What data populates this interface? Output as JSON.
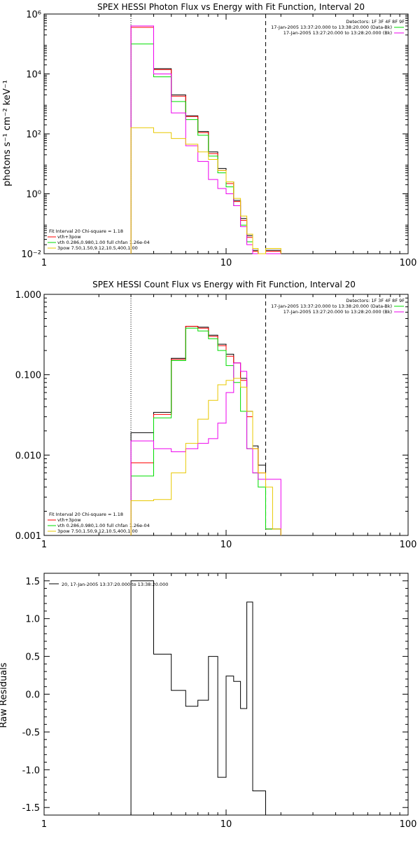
{
  "colors": {
    "black": "#000000",
    "red": "#ff0000",
    "green": "#00dd00",
    "magenta": "#ee00ee",
    "yellow": "#e8c800"
  },
  "chart_data": [
    {
      "type": "line",
      "title": "SPEX HESSI Photon Flux vs Energy with Fit Function, Interval 20",
      "xlabel": "",
      "ylabel": "photons s⁻¹ cm⁻² keV⁻¹",
      "xscale": "log",
      "yscale": "log",
      "xlim": [
        1,
        100
      ],
      "ylim": [
        0.01,
        1000000
      ],
      "x_ticks": [
        "1",
        "10",
        "100"
      ],
      "y_ticks": [
        "10⁻²",
        "10⁰",
        "10²",
        "10⁴",
        "10⁶"
      ],
      "annotation_left": [
        "Fit Interval 20   Chi-square = 1.18",
        "vth+3pow",
        "vth 0.286,0.980,1.00  full chfan 1.26e-04",
        "3pow 7.50,1.50,9.12,10.5,400,1.00"
      ],
      "annotation_right": [
        "Detectors: 1F 3F 4F 8F 9F",
        "17-Jan-2005 13:37:20.000 to 13:38:20.000 (Data-Bk)",
        "17-Jan-2005 13:27:20.000 to 13:28:20.000 (Bk)"
      ],
      "vlines": [
        {
          "x": 3,
          "style": "dotted"
        },
        {
          "x": 16.5,
          "style": "dashed"
        }
      ],
      "edges": [
        3,
        4,
        5,
        6,
        7,
        8,
        9,
        10,
        11,
        12,
        13,
        14,
        15,
        16.5,
        18,
        20
      ],
      "series": [
        {
          "name": "Data-Bk",
          "color": "black",
          "values": [
            400000,
            15000,
            2000,
            400,
            120,
            25,
            7,
            2.5,
            0.6,
            0.15,
            0.04,
            0.013,
            0.005,
            0.013,
            0.013
          ]
        },
        {
          "name": "vth+3pow",
          "color": "red",
          "values": [
            360000,
            14000,
            1800,
            380,
            110,
            22,
            6,
            2.2,
            0.55,
            0.13,
            0.035,
            0.012,
            0.004,
            0.012,
            0.012
          ]
        },
        {
          "name": "vth",
          "color": "green",
          "values": [
            100000,
            8000,
            1200,
            300,
            90,
            18,
            5,
            1.7,
            0.4,
            0.09,
            0.025,
            0.01,
            0.004,
            0.004,
            0.004
          ]
        },
        {
          "name": "Bk",
          "color": "magenta",
          "values": [
            400000,
            10000,
            500,
            40,
            12,
            3,
            1.5,
            1,
            0.4,
            0.08,
            0.02,
            0.005,
            0.005,
            0.005,
            0.005
          ]
        },
        {
          "name": "3pow",
          "color": "yellow",
          "values": [
            160,
            110,
            70,
            45,
            25,
            14,
            6,
            2.5,
            0.7,
            0.18,
            0.045,
            0.015,
            0.006,
            0.015,
            0.015
          ]
        }
      ]
    },
    {
      "type": "line",
      "title": "SPEX HESSI Count Flux vs Energy with Fit Function, Interval 20",
      "xlabel": "",
      "ylabel": "",
      "xscale": "log",
      "yscale": "log",
      "xlim": [
        1,
        100
      ],
      "ylim": [
        0.001,
        1
      ],
      "x_ticks": [
        "1",
        "10",
        "100"
      ],
      "y_ticks": [
        "0.001",
        "0.010",
        "0.100",
        "1.000"
      ],
      "annotation_left": [
        "Fit Interval 20   Chi-square = 1.18",
        "vth+3pow",
        "vth 0.286,0.980,1.00  full chfan 1.26e-04",
        "3pow 7.50,1.50,9.12,10.5,400,1.00"
      ],
      "annotation_right": [
        "Detectors: 1F 3F 4F 8F 9F",
        "17-Jan-2005 13:37:20.000 to 13:38:20.000 (Data-Bk)",
        "17-Jan-2005 13:27:20.000 to 13:28:20.000 (Bk)"
      ],
      "vlines": [
        {
          "x": 3,
          "style": "dotted"
        },
        {
          "x": 16.5,
          "style": "dashed"
        }
      ],
      "edges": [
        3,
        4,
        5,
        6,
        7,
        8,
        9,
        10,
        11,
        12,
        13,
        14,
        15,
        16.5,
        18,
        20
      ],
      "series": [
        {
          "name": "Data-Bk",
          "color": "black",
          "values": [
            0.019,
            0.034,
            0.16,
            0.4,
            0.39,
            0.31,
            0.24,
            0.18,
            0.14,
            0.09,
            0.035,
            0.013,
            0.0075,
            0.0012,
            0.0012
          ]
        },
        {
          "name": "vth+3pow",
          "color": "red",
          "values": [
            0.008,
            0.032,
            0.155,
            0.4,
            0.38,
            0.3,
            0.23,
            0.17,
            0.14,
            0.085,
            0.03,
            0.012,
            0.006,
            0.0012,
            0.0012
          ]
        },
        {
          "name": "vth",
          "color": "green",
          "values": [
            0.0055,
            0.029,
            0.15,
            0.38,
            0.35,
            0.28,
            0.2,
            0.13,
            0.08,
            0.035,
            0.012,
            0.006,
            0.004,
            0.0012,
            0.0012
          ]
        },
        {
          "name": "Bk",
          "color": "magenta",
          "values": [
            0.015,
            0.012,
            0.011,
            0.012,
            0.014,
            0.016,
            0.025,
            0.06,
            0.14,
            0.11,
            0.012,
            0.006,
            0.005,
            0.005,
            0.005
          ]
        },
        {
          "name": "3pow",
          "color": "yellow",
          "values": [
            0.0027,
            0.0028,
            0.006,
            0.014,
            0.028,
            0.048,
            0.075,
            0.085,
            0.09,
            0.07,
            0.035,
            0.012,
            0.006,
            0.004,
            0.0012
          ]
        }
      ]
    },
    {
      "type": "line",
      "title": "",
      "xlabel": "",
      "ylabel": "Raw Residuals",
      "xscale": "log",
      "yscale": "linear",
      "xlim": [
        1,
        100
      ],
      "ylim": [
        -1.6,
        1.6
      ],
      "x_ticks": [
        "1",
        "10",
        "100"
      ],
      "y_ticks": [
        "-1.5",
        "-1.0",
        "-0.5",
        "0.0",
        "0.5",
        "1.0",
        "1.5"
      ],
      "legend": "20, 17-Jan-2005 13:37:20.000 to 13:38:20.000",
      "edges": [
        3,
        4,
        5,
        6,
        7,
        8,
        9,
        10,
        11,
        12,
        13,
        14,
        15,
        16.5
      ],
      "series": [
        {
          "name": "residuals",
          "color": "black",
          "values": [
            1.5,
            0.53,
            0.05,
            -0.16,
            -0.08,
            0.5,
            -1.1,
            0.24,
            0.17,
            -0.19,
            1.22,
            -1.28,
            -1.28
          ]
        }
      ]
    }
  ]
}
